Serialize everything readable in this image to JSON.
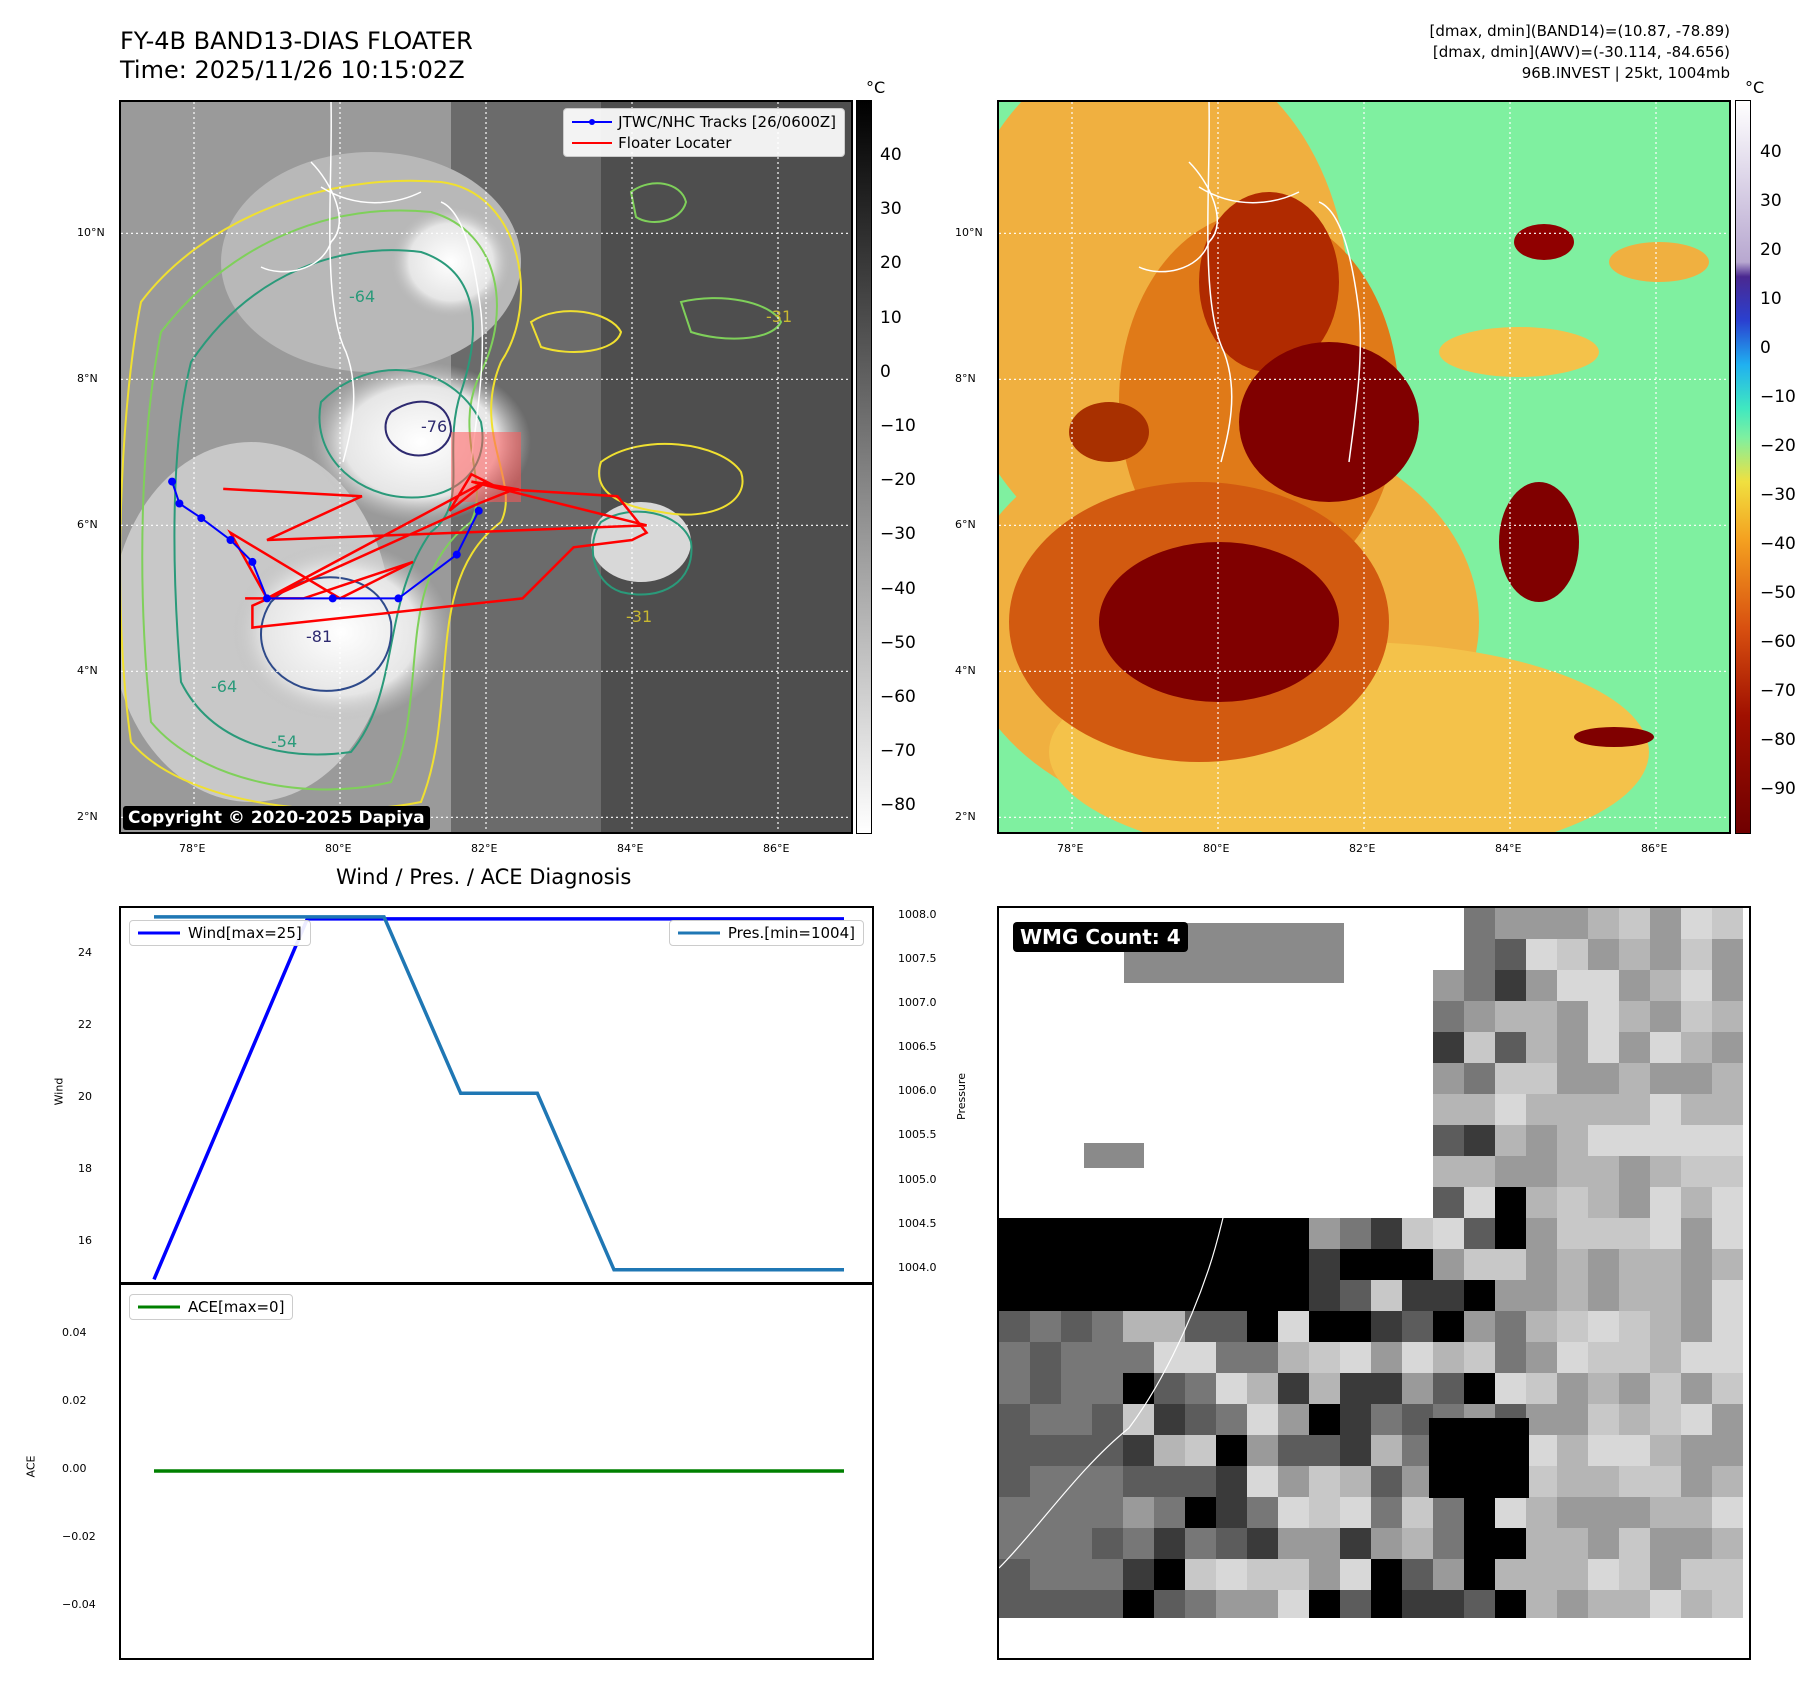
{
  "header": {
    "title_line1": "FY-4B BAND13-DIAS FLOATER",
    "title_line2": "Time: 2025/11/26 10:15:02Z",
    "info_line1": "[dmax, dmin](BAND14)=(10.87, -78.89)",
    "info_line2": "[dmax, dmin](AWV)=(-30.114, -84.656)",
    "info_line3": "96B.INVEST | 25kt, 1004mb"
  },
  "map": {
    "lon_labels": [
      "78°E",
      "80°E",
      "82°E",
      "84°E",
      "86°E"
    ],
    "lat_labels": [
      "10°N",
      "8°N",
      "6°N",
      "4°N",
      "2°N"
    ],
    "lon_range": [
      77,
      87
    ],
    "lat_range": [
      1.8,
      11.8
    ],
    "copyright": "Copyright © 2020-2025 Dapiya",
    "legend": {
      "track_label": "JTWC/NHC Tracks [26/0600Z]",
      "floater_label": "Floater Locater",
      "track_color": "#0000ff",
      "floater_color": "#ff0000"
    },
    "contour_labels": [
      "-31",
      "-54",
      "-64",
      "-76",
      "-81"
    ],
    "colorbar_unit": "°C",
    "cb1_ticks": [
      "40",
      "30",
      "20",
      "10",
      "0",
      "−10",
      "−20",
      "−30",
      "−40",
      "−50",
      "−60",
      "−70",
      "−80"
    ],
    "cb2_ticks": [
      "40",
      "30",
      "20",
      "10",
      "0",
      "−10",
      "−20",
      "−30",
      "−40",
      "−50",
      "−60",
      "−70",
      "−80",
      "−90"
    ]
  },
  "diagnosis": {
    "title": "Wind / Pres. / ACE Diagnosis",
    "wind_legend": "Wind[max=25]",
    "pres_legend": "Pres.[min=1004]",
    "ace_legend": "ACE[max=0]",
    "wind_axis_label": "Wind",
    "pres_axis_label": "Pressure",
    "ace_axis_label": "ACE",
    "wind_ticks": [
      "24",
      "22",
      "20",
      "18",
      "16"
    ],
    "pres_ticks": [
      "1008.0",
      "1007.5",
      "1007.0",
      "1006.5",
      "1006.0",
      "1005.5",
      "1005.0",
      "1004.5",
      "1004.0"
    ],
    "ace_ticks": [
      "0.04",
      "0.02",
      "0.00",
      "−0.02",
      "−0.04"
    ]
  },
  "wmg": {
    "label": "WMG Count: 4"
  },
  "chart_data": [
    {
      "type": "scatter",
      "title": "FY-4B BAND13-DIAS FLOATER",
      "xlabel": "",
      "ylabel": "",
      "xlim": [
        77,
        87
      ],
      "ylim": [
        1.8,
        11.8
      ],
      "series": [
        {
          "name": "JTWC/NHC Tracks [26/0600Z]",
          "x": [
            77.7,
            77.8,
            78.1,
            78.5,
            78.8,
            79.0,
            79.9,
            80.8,
            81.6,
            81.9
          ],
          "y": [
            6.6,
            6.3,
            6.1,
            5.8,
            5.5,
            5.0,
            5.0,
            5.0,
            5.6,
            6.2
          ]
        },
        {
          "name": "Floater Locater",
          "x": [
            78.4,
            80.3,
            79.0,
            84.2,
            81.8,
            82.4,
            81.9,
            78.8,
            78.8,
            82.5,
            83.2,
            84.0,
            84.2,
            83.8,
            82.2,
            81.8,
            81.5,
            82.0,
            81.8,
            79.0,
            78.5,
            80.0,
            81.0,
            79.5,
            78.7
          ],
          "y": [
            6.5,
            6.4,
            5.8,
            6.0,
            6.6,
            6.5,
            6.3,
            4.9,
            4.6,
            5.0,
            5.7,
            5.8,
            5.9,
            6.4,
            6.5,
            6.7,
            6.2,
            6.6,
            6.5,
            5.0,
            5.9,
            5.0,
            5.5,
            5.0,
            5.0
          ]
        }
      ]
    },
    {
      "type": "line",
      "title": "Wind / Pres. / ACE Diagnosis",
      "xlabel": "",
      "ylabel": "Wind",
      "x": [
        0,
        1,
        2,
        3,
        4,
        5,
        6,
        7,
        8,
        9
      ],
      "ylim": [
        14.9,
        25.3
      ],
      "y2lim": [
        1003.85,
        1008.1
      ],
      "series": [
        {
          "name": "Wind[max=25]",
          "axis": "left",
          "color": "#0000ff",
          "values": [
            15,
            20,
            25,
            25,
            25,
            25,
            25,
            25,
            25,
            25
          ]
        },
        {
          "name": "Pres.[min=1004]",
          "axis": "right",
          "color": "#1f77b4",
          "values": [
            1008,
            1008,
            1008,
            1008,
            1006,
            1006,
            1004,
            1004,
            1004,
            1004
          ]
        }
      ]
    },
    {
      "type": "line",
      "xlabel": "",
      "ylabel": "ACE",
      "x": [
        0,
        1,
        2,
        3,
        4,
        5,
        6,
        7,
        8,
        9
      ],
      "ylim": [
        -0.055,
        0.055
      ],
      "series": [
        {
          "name": "ACE[max=0]",
          "color": "#008000",
          "values": [
            0,
            0,
            0,
            0,
            0,
            0,
            0,
            0,
            0,
            0
          ]
        }
      ]
    }
  ]
}
